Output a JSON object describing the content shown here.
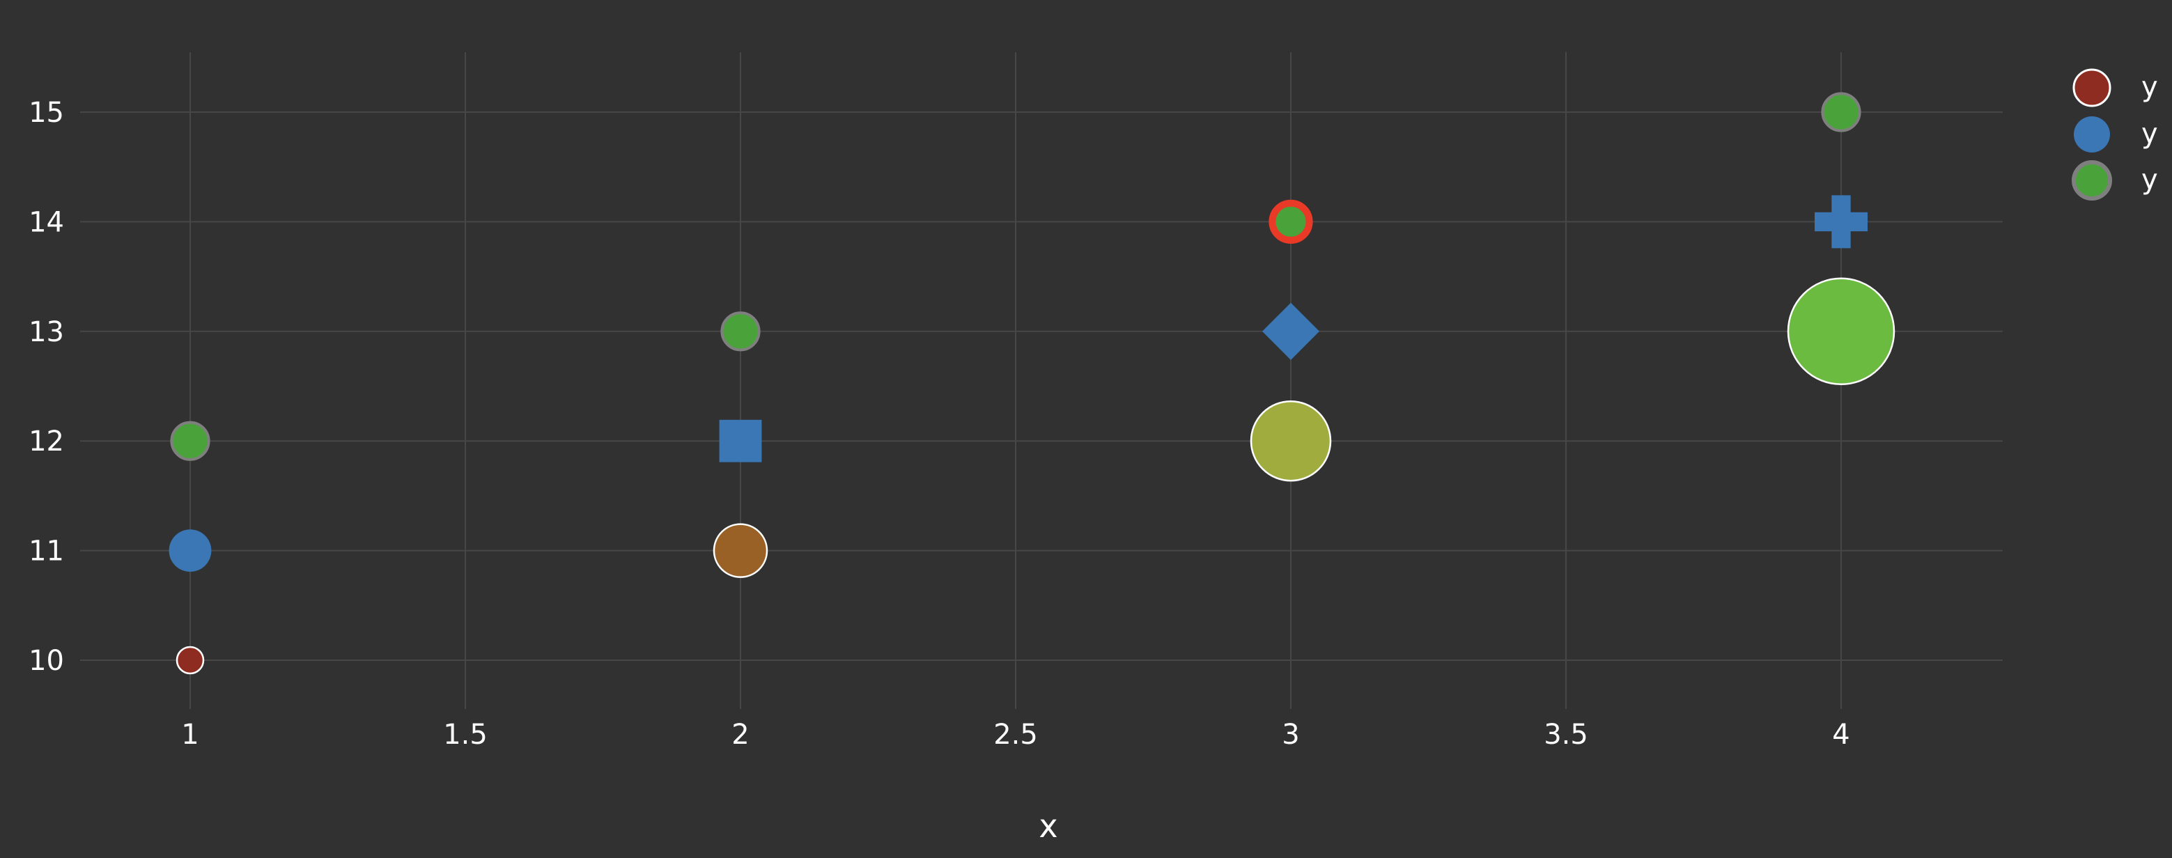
{
  "chart_data": {
    "type": "scatter",
    "title": "",
    "xlabel": "x",
    "ylabel": "",
    "xlim": [
      0.8,
      4.3
    ],
    "ylim": [
      9.55,
      15.55
    ],
    "xticks": [
      "1",
      "1.5",
      "2",
      "2.5",
      "3",
      "3.5",
      "4"
    ],
    "xtick_values": [
      1,
      1.5,
      2,
      2.5,
      3,
      3.5,
      4
    ],
    "yticks": [
      "10",
      "11",
      "12",
      "13",
      "14",
      "15"
    ],
    "ytick_values": [
      10,
      11,
      12,
      13,
      14,
      15
    ],
    "grid": true,
    "legend_position": "top-right",
    "series": [
      {
        "name": "y",
        "x": [
          1,
          2,
          3,
          4
        ],
        "y": [
          10,
          11,
          12,
          13
        ],
        "marker_symbol": "circle",
        "marker_size": [
          10,
          20,
          30,
          40
        ],
        "marker_colors": [
          "#8e2c22",
          "#9a6126",
          "#a0ad3e",
          "#6abb40"
        ],
        "marker_line_color": "#ffffff"
      },
      {
        "name": "y",
        "x": [
          1,
          2,
          3,
          4
        ],
        "y": [
          11,
          12,
          13,
          14
        ],
        "marker_symbol": [
          "circle",
          "square",
          "diamond",
          "cross"
        ],
        "marker_size": 16,
        "marker_colors": [
          "#3a77b4",
          "#3a77b4",
          "#3a77b4",
          "#3a77b4"
        ]
      },
      {
        "name": "y",
        "x": [
          1,
          2,
          3,
          4
        ],
        "y": [
          12,
          13,
          14,
          15
        ],
        "marker_symbol": "circle",
        "marker_size": 14,
        "marker_colors": [
          "#4aa33a",
          "#4aa33a",
          "#4aa33a",
          "#4aa33a"
        ],
        "marker_line_colors": [
          "#7f7f7f",
          "#7f7f7f",
          "#e83a27",
          "#7f7f7f"
        ],
        "marker_line_widths": [
          4,
          4,
          10,
          4
        ]
      }
    ]
  },
  "colors": {
    "background": "#313131",
    "grid": "#474747",
    "text": "#ffffff"
  }
}
